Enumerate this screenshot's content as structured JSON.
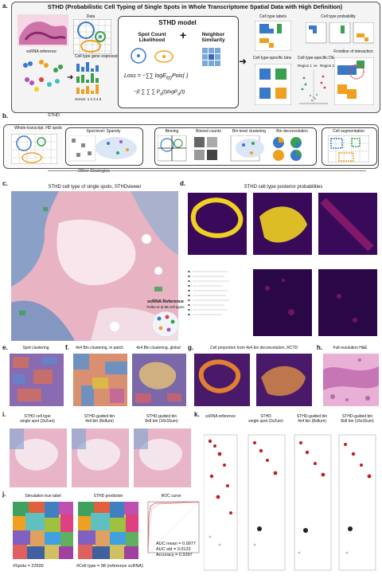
{
  "colors": {
    "magenta": "#f4a0c8",
    "heat_dark": "#3a0a5a",
    "heat_mid": "#a02070",
    "heat_hi": "#f0d020",
    "blue": "#3a78c8",
    "orange": "#f0a020",
    "green": "#3aa050"
  },
  "panel_a": {
    "label": "a.",
    "title": "STHD (Probabilistic Cell Typing of Single Spots in Whole Transcriptome Spatial Data with High Definition)",
    "data_label": "Data",
    "scrna_label": "scRNA reference",
    "celltype_expr_label": "Cell type gene expression",
    "genes_label": "Genes: 1   2   3   4   5",
    "model_title": "STHD model",
    "spot_count_label": "Spot Count\nLikelihood",
    "neighbor_label": "Neighbor\nSimilarity",
    "plus": "+",
    "loss_label": "Loss",
    "celltype_labels": "Cell type labels",
    "celltype_prob": "Cell type probability",
    "celltype_bins": "Cell type-specific bins",
    "celltype_de": "Cell type-specific DE",
    "frontline": "Frontline of interaction",
    "region1": "Region 1",
    "vs": "vs",
    "region2": "Region 2"
  },
  "panel_b": {
    "label": "b.",
    "stHD": "STHD",
    "wt_spots": "Whole-transcript. HD spots",
    "sparsity": "Spot-level: Sparsity",
    "other": "Other Strategies",
    "binning": "Binning",
    "binned_counts": "Binned counts",
    "bin_clustering": "Bin-level clustering",
    "bin_deconv": "Bin deconvolution",
    "cell_seg": "Cell segmentation"
  },
  "panel_c": {
    "label": "c.",
    "title": "STHD cell type of single spots, STHDviewer"
  },
  "panel_d": {
    "label": "d.",
    "title": "STHD cell type posterior probabilities",
    "ref_title": "scRNA Reference",
    "ref_sub": "Pelka et al 98 cell types"
  },
  "panel_e": {
    "label": "e.",
    "title": "Spot clustering"
  },
  "panel_f": {
    "label": "f.",
    "title": "4x4 Bin clustering, in patch",
    "title2": "4x4 Bin clustering, global"
  },
  "panel_g": {
    "label": "g.",
    "title": "Cell proportion from 4x4 bin deconvolution, RCTD"
  },
  "panel_h": {
    "label": "h.",
    "title": "Full-resolution H&E"
  },
  "panel_i": {
    "label": "i.",
    "t1": "STHD cell type\nsingle spot (2x2um)",
    "t2": "STHD-guided bin\n4x4 bin (8x8um)",
    "t3": "STHD-guided bin\n8x8 bin (16x16um)"
  },
  "panel_k": {
    "label": "k.",
    "t0": "scRNA reference",
    "t1": "STHD\nsingle spot (2x2um)",
    "t2": "STHD-guided bin\n4x4 bin (8x8um)",
    "t3": "STHD-guided bin\n8x8 bin (16x16um)"
  },
  "panel_j": {
    "label": "j.",
    "t1": "Simulation true label",
    "t2": "STHD prediction",
    "t3": "ROC curve",
    "auc_mean": "AUC mean = 0.9977",
    "auc_std": "AUC std = 0.0123",
    "accuracy": "Accuracy = 0.9397",
    "n_spots": "#Spots = 22500",
    "n_celltype": "#Cell type = 98  (reference scRNA)"
  }
}
